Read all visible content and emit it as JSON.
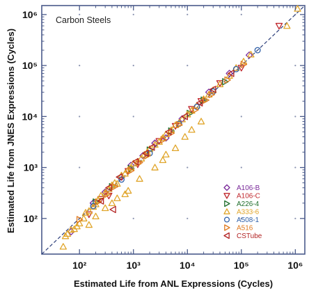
{
  "chart_data": {
    "type": "scatter",
    "annotation": "Carbon Steels",
    "xlabel": "Estimated Life from ANL Expressions (Cycles)",
    "ylabel": "Estimated Life from JNES Expressions (Cycles)",
    "x_scale": "log",
    "y_scale": "log",
    "xlim": [
      20,
      1500000
    ],
    "ylim": [
      20,
      1500000
    ],
    "x_ticks": [
      {
        "value": 100,
        "label": "10²"
      },
      {
        "value": 1000,
        "label": "10³"
      },
      {
        "value": 10000,
        "label": "10⁴"
      },
      {
        "value": 100000,
        "label": "10⁵"
      },
      {
        "value": 1000000,
        "label": "10⁶"
      }
    ],
    "y_ticks": [
      {
        "value": 100,
        "label": "10²"
      },
      {
        "value": 1000,
        "label": "10³"
      },
      {
        "value": 10000,
        "label": "10⁴"
      },
      {
        "value": 100000,
        "label": "10⁵"
      },
      {
        "value": 1000000,
        "label": "10⁶"
      }
    ],
    "reference_line": "1:1",
    "grid": "dotted minor points",
    "legend_position": "bottom-right",
    "series": [
      {
        "name": "A106-B",
        "marker": "diamond",
        "color": "#7a2a9a",
        "points": [
          [
            70,
            55
          ],
          [
            300,
            330
          ],
          [
            900,
            1100
          ],
          [
            2500,
            3000
          ],
          [
            8000,
            9000
          ],
          [
            25000,
            30000
          ],
          [
            60000,
            70000
          ],
          [
            140000,
            160000
          ],
          [
            4000,
            3800
          ],
          [
            1500,
            1700
          ],
          [
            180,
            200
          ],
          [
            600,
            650
          ]
        ]
      },
      {
        "name": "A106-C",
        "marker": "triangle-down",
        "color": "#c0272d",
        "points": [
          [
            500000,
            600000
          ],
          [
            100000,
            90000
          ],
          [
            40000,
            45000
          ],
          [
            12000,
            14000
          ],
          [
            3000,
            3300
          ],
          [
            800,
            850
          ],
          [
            250,
            240
          ],
          [
            18000,
            20000
          ],
          [
            6000,
            6500
          ],
          [
            1200,
            1150
          ],
          [
            350,
            280
          ],
          [
            150,
            120
          ]
        ]
      },
      {
        "name": "A226-4",
        "marker": "triangle-right",
        "color": "#1f6e2c",
        "points": [
          [
            2000,
            2200
          ],
          [
            5000,
            5200
          ],
          [
            400,
            420
          ],
          [
            20000,
            21000
          ],
          [
            900,
            950
          ],
          [
            11000,
            11500
          ],
          [
            50000,
            48000
          ],
          [
            200,
            210
          ]
        ]
      },
      {
        "name": "A333-6",
        "marker": "triangle-up",
        "color": "#e0a52a",
        "points": [
          [
            50,
            28
          ],
          [
            55,
            45
          ],
          [
            60,
            50
          ],
          [
            70,
            60
          ],
          [
            80,
            62
          ],
          [
            90,
            70
          ],
          [
            100,
            80
          ],
          [
            120,
            100
          ],
          [
            130,
            130
          ],
          [
            150,
            140
          ],
          [
            180,
            170
          ],
          [
            200,
            190
          ],
          [
            220,
            230
          ],
          [
            250,
            280
          ],
          [
            300,
            320
          ],
          [
            350,
            380
          ],
          [
            400,
            450
          ],
          [
            450,
            500
          ],
          [
            500,
            480
          ],
          [
            600,
            700
          ],
          [
            700,
            760
          ],
          [
            800,
            900
          ],
          [
            900,
            1000
          ],
          [
            1000,
            1200
          ],
          [
            1200,
            1300
          ],
          [
            1400,
            1500
          ],
          [
            1600,
            1800
          ],
          [
            1800,
            2000
          ],
          [
            2000,
            2300
          ],
          [
            2500,
            2800
          ],
          [
            3000,
            3200
          ],
          [
            3500,
            3800
          ],
          [
            4000,
            4500
          ],
          [
            5000,
            5400
          ],
          [
            6000,
            6800
          ],
          [
            7000,
            7500
          ],
          [
            8000,
            8800
          ],
          [
            10000,
            11000
          ],
          [
            12000,
            13000
          ],
          [
            15000,
            16500
          ],
          [
            20000,
            22000
          ],
          [
            25000,
            27000
          ],
          [
            30000,
            33000
          ],
          [
            40000,
            43000
          ],
          [
            60000,
            63000
          ],
          [
            80000,
            90000
          ],
          [
            110000,
            120000
          ],
          [
            150000,
            165000
          ],
          [
            700000,
            600000
          ],
          [
            1100000,
            1300000
          ],
          [
            200,
            110
          ],
          [
            300,
            160
          ],
          [
            500,
            250
          ],
          [
            800,
            350
          ],
          [
            2500,
            1000
          ],
          [
            4000,
            1800
          ],
          [
            9000,
            4000
          ],
          [
            18000,
            8000
          ],
          [
            6000,
            2400
          ],
          [
            1300,
            600
          ],
          [
            150,
            75
          ],
          [
            400,
            200
          ],
          [
            700,
            300
          ],
          [
            3500,
            1400
          ],
          [
            12000,
            5500
          ]
        ]
      },
      {
        "name": "A508-1",
        "marker": "circle",
        "color": "#2e5fa8",
        "points": [
          [
            200000,
            200000
          ],
          [
            80000,
            85000
          ],
          [
            30000,
            31000
          ],
          [
            7000,
            7200
          ],
          [
            2000,
            1900
          ],
          [
            600,
            580
          ],
          [
            180,
            175
          ],
          [
            15000,
            15500
          ]
        ]
      },
      {
        "name": "A516",
        "marker": "triangle-right",
        "color": "#e07a1f",
        "points": [
          [
            100,
            95
          ],
          [
            220,
            210
          ],
          [
            450,
            420
          ],
          [
            900,
            870
          ],
          [
            1800,
            1700
          ],
          [
            3600,
            3500
          ],
          [
            7000,
            6900
          ],
          [
            14000,
            13500
          ],
          [
            28000,
            27000
          ],
          [
            55000,
            52000
          ],
          [
            110000,
            105000
          ],
          [
            330,
            300
          ],
          [
            1300,
            1250
          ],
          [
            5000,
            4700
          ],
          [
            22000,
            21000
          ]
        ]
      },
      {
        "name": "CSTube",
        "marker": "triangle-left",
        "color": "#b22222",
        "points": [
          [
            350,
            400
          ],
          [
            420,
            150
          ],
          [
            550,
            650
          ],
          [
            1100,
            1300
          ],
          [
            2200,
            2500
          ],
          [
            4500,
            5000
          ],
          [
            9000,
            10000
          ],
          [
            30000,
            34000
          ],
          [
            65000,
            70000
          ],
          [
            250,
            220
          ],
          [
            1700,
            1900
          ],
          [
            17000,
            18500
          ]
        ]
      }
    ]
  }
}
